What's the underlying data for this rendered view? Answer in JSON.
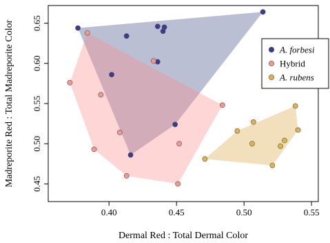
{
  "chart_data": {
    "type": "scatter",
    "xlabel": "Dermal Red : Total Dermal Color",
    "ylabel": "Madreporite Red : Total Madreporite Color",
    "xlim": [
      0.355,
      0.555
    ],
    "ylim": [
      0.428,
      0.672
    ],
    "x_ticks": [
      0.4,
      0.45,
      0.5,
      0.55
    ],
    "x_tick_labels": [
      "0.40",
      "0.45",
      "0.50",
      "0.55"
    ],
    "y_ticks": [
      0.45,
      0.5,
      0.55,
      0.6,
      0.65
    ],
    "y_tick_labels": [
      "0.45",
      "0.50",
      "0.55",
      "0.60",
      "0.65"
    ],
    "grid": false,
    "legend_position": "right",
    "series": [
      {
        "name": "A. forbesi",
        "italic": true,
        "point_color": "#3b3b8f",
        "fill_color": "#1f2a6e",
        "fill_opacity": 0.3,
        "points": [
          [
            0.377,
            0.644
          ],
          [
            0.413,
            0.634
          ],
          [
            0.436,
            0.646
          ],
          [
            0.441,
            0.645
          ],
          [
            0.44,
            0.64
          ],
          [
            0.436,
            0.602
          ],
          [
            0.402,
            0.586
          ],
          [
            0.449,
            0.524
          ],
          [
            0.416,
            0.486
          ],
          [
            0.514,
            0.664
          ]
        ],
        "hull": [
          [
            0.377,
            0.644
          ],
          [
            0.514,
            0.664
          ],
          [
            0.449,
            0.524
          ],
          [
            0.416,
            0.486
          ]
        ]
      },
      {
        "name": "Hybrid",
        "italic": false,
        "point_color": "#f4978e",
        "fill_color": "#ff8a8a",
        "fill_opacity": 0.35,
        "points": [
          [
            0.384,
            0.638
          ],
          [
            0.433,
            0.603
          ],
          [
            0.371,
            0.576
          ],
          [
            0.394,
            0.561
          ],
          [
            0.484,
            0.548
          ],
          [
            0.408,
            0.514
          ],
          [
            0.452,
            0.5
          ],
          [
            0.389,
            0.493
          ],
          [
            0.413,
            0.46
          ],
          [
            0.451,
            0.45
          ]
        ],
        "hull": [
          [
            0.384,
            0.638
          ],
          [
            0.484,
            0.548
          ],
          [
            0.451,
            0.45
          ],
          [
            0.413,
            0.46
          ],
          [
            0.389,
            0.493
          ],
          [
            0.371,
            0.576
          ]
        ]
      },
      {
        "name": "A. rubens",
        "italic": true,
        "point_color": "#e0b24a",
        "fill_color": "#d9a440",
        "fill_opacity": 0.35,
        "points": [
          [
            0.538,
            0.547
          ],
          [
            0.507,
            0.527
          ],
          [
            0.495,
            0.516
          ],
          [
            0.54,
            0.517
          ],
          [
            0.506,
            0.5
          ],
          [
            0.53,
            0.504
          ],
          [
            0.527,
            0.497
          ],
          [
            0.471,
            0.481
          ],
          [
            0.521,
            0.473
          ]
        ],
        "hull": [
          [
            0.538,
            0.547
          ],
          [
            0.54,
            0.517
          ],
          [
            0.521,
            0.473
          ],
          [
            0.471,
            0.481
          ],
          [
            0.495,
            0.516
          ]
        ]
      }
    ]
  }
}
